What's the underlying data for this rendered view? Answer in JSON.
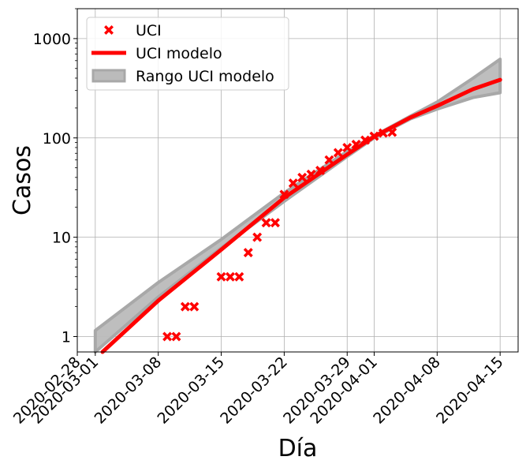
{
  "chart_data": {
    "type": "line",
    "xlabel": "Día",
    "ylabel": "Casos",
    "x_scale": "date",
    "y_scale": "log",
    "xlim": [
      "2020-02-28",
      "2020-04-17"
    ],
    "ylim": [
      0.7,
      2000
    ],
    "grid": true,
    "legend_placement": "top-left",
    "x_ticks": [
      {
        "date": "2020-02-28",
        "label": "2020-02-28"
      },
      {
        "date": "2020-03-01",
        "label": "2020-03-01"
      },
      {
        "date": "2020-03-08",
        "label": "2020-03-08"
      },
      {
        "date": "2020-03-15",
        "label": "2020-03-15"
      },
      {
        "date": "2020-03-22",
        "label": "2020-03-22"
      },
      {
        "date": "2020-03-29",
        "label": "2020-03-29"
      },
      {
        "date": "2020-04-01",
        "label": "2020-04-01"
      },
      {
        "date": "2020-04-08",
        "label": "2020-04-08"
      },
      {
        "date": "2020-04-15",
        "label": "2020-04-15"
      }
    ],
    "y_ticks": [
      {
        "value": 1,
        "label": "1"
      },
      {
        "value": 10,
        "label": "10"
      },
      {
        "value": 100,
        "label": "100"
      },
      {
        "value": 1000,
        "label": "1000"
      }
    ],
    "series": [
      {
        "name": "UCI",
        "kind": "scatter",
        "marker": "x",
        "color": "#ff0000",
        "points": [
          {
            "x": "2020-03-09",
            "y": 1
          },
          {
            "x": "2020-03-10",
            "y": 1
          },
          {
            "x": "2020-03-11",
            "y": 2
          },
          {
            "x": "2020-03-12",
            "y": 2
          },
          {
            "x": "2020-03-15",
            "y": 4
          },
          {
            "x": "2020-03-16",
            "y": 4
          },
          {
            "x": "2020-03-17",
            "y": 4
          },
          {
            "x": "2020-03-18",
            "y": 7
          },
          {
            "x": "2020-03-19",
            "y": 10
          },
          {
            "x": "2020-03-20",
            "y": 14
          },
          {
            "x": "2020-03-21",
            "y": 14
          },
          {
            "x": "2020-03-22",
            "y": 27
          },
          {
            "x": "2020-03-23",
            "y": 35
          },
          {
            "x": "2020-03-24",
            "y": 40
          },
          {
            "x": "2020-03-25",
            "y": 43
          },
          {
            "x": "2020-03-26",
            "y": 47
          },
          {
            "x": "2020-03-27",
            "y": 60
          },
          {
            "x": "2020-03-28",
            "y": 71
          },
          {
            "x": "2020-03-29",
            "y": 80
          },
          {
            "x": "2020-03-30",
            "y": 86
          },
          {
            "x": "2020-03-31",
            "y": 95
          },
          {
            "x": "2020-04-01",
            "y": 104
          },
          {
            "x": "2020-04-02",
            "y": 112
          },
          {
            "x": "2020-04-03",
            "y": 114
          }
        ]
      },
      {
        "name": "UCI modelo",
        "kind": "line",
        "color": "#ff0000",
        "points": [
          {
            "x": "2020-03-01",
            "y": 0.6
          },
          {
            "x": "2020-03-08",
            "y": 2.3
          },
          {
            "x": "2020-03-15",
            "y": 7.5
          },
          {
            "x": "2020-03-22",
            "y": 25
          },
          {
            "x": "2020-03-29",
            "y": 68
          },
          {
            "x": "2020-04-01",
            "y": 103
          },
          {
            "x": "2020-04-05",
            "y": 160
          },
          {
            "x": "2020-04-08",
            "y": 210
          },
          {
            "x": "2020-04-12",
            "y": 310
          },
          {
            "x": "2020-04-15",
            "y": 385
          }
        ]
      },
      {
        "name": "Rango UCI modelo",
        "kind": "band",
        "color": "#bbbbbb",
        "upper": [
          {
            "x": "2020-03-01",
            "y": 1.15
          },
          {
            "x": "2020-03-08",
            "y": 3.5
          },
          {
            "x": "2020-03-15",
            "y": 9.5
          },
          {
            "x": "2020-03-22",
            "y": 28
          },
          {
            "x": "2020-03-29",
            "y": 73
          },
          {
            "x": "2020-04-01",
            "y": 105
          },
          {
            "x": "2020-04-05",
            "y": 165
          },
          {
            "x": "2020-04-08",
            "y": 230
          },
          {
            "x": "2020-04-12",
            "y": 400
          },
          {
            "x": "2020-04-15",
            "y": 620
          }
        ],
        "lower": [
          {
            "x": "2020-03-01",
            "y": 0.7
          },
          {
            "x": "2020-03-08",
            "y": 2.5
          },
          {
            "x": "2020-03-15",
            "y": 7.8
          },
          {
            "x": "2020-03-22",
            "y": 23
          },
          {
            "x": "2020-03-29",
            "y": 65
          },
          {
            "x": "2020-04-01",
            "y": 100
          },
          {
            "x": "2020-04-05",
            "y": 155
          },
          {
            "x": "2020-04-08",
            "y": 195
          },
          {
            "x": "2020-04-12",
            "y": 255
          },
          {
            "x": "2020-04-15",
            "y": 285
          }
        ]
      }
    ]
  }
}
